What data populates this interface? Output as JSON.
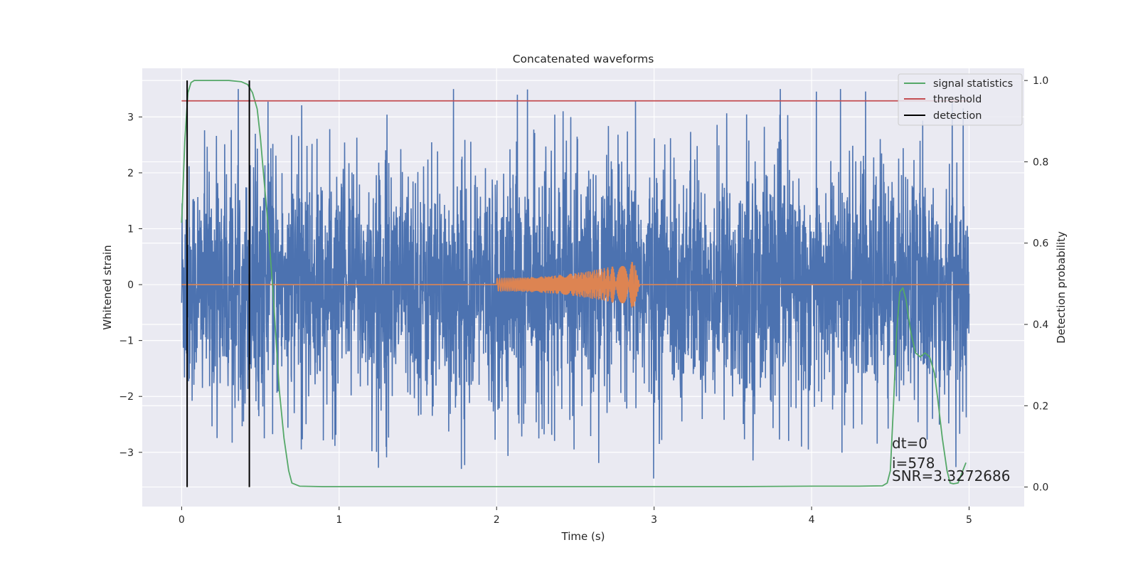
{
  "chart_data": {
    "type": "line",
    "title": "Concatenated waveforms",
    "xlabel": "Time (s)",
    "ylabel": "Whitened strain",
    "ylabel_right": "Detection probability",
    "xlim": [
      -0.25,
      5.35
    ],
    "ylim": [
      -3.97,
      3.87
    ],
    "ylim_right": [
      -0.048,
      1.03
    ],
    "grid": true,
    "legend_position": "top-right",
    "x_ticks": [
      {
        "value": 0,
        "label": "0"
      },
      {
        "value": 1,
        "label": "1"
      },
      {
        "value": 2,
        "label": "2"
      },
      {
        "value": 3,
        "label": "3"
      },
      {
        "value": 4,
        "label": "4"
      },
      {
        "value": 5,
        "label": "5"
      }
    ],
    "y_ticks": [
      {
        "value": -3,
        "label": "−3"
      },
      {
        "value": -2,
        "label": "−2"
      },
      {
        "value": -1,
        "label": "−1"
      },
      {
        "value": 0,
        "label": "0"
      },
      {
        "value": 1,
        "label": "1"
      },
      {
        "value": 2,
        "label": "2"
      },
      {
        "value": 3,
        "label": "3"
      }
    ],
    "y_ticks_right": [
      {
        "value": 0.0,
        "label": "0.0"
      },
      {
        "value": 0.2,
        "label": "0.2"
      },
      {
        "value": 0.4,
        "label": "0.4"
      },
      {
        "value": 0.6,
        "label": "0.6"
      },
      {
        "value": 0.8,
        "label": "0.8"
      },
      {
        "value": 1.0,
        "label": "1.0"
      }
    ],
    "noise_series": {
      "color": "#4c72b0",
      "x_range": [
        0,
        5
      ],
      "typical_amplitude": 1.1,
      "peak_min": -3.6,
      "peak_max": 3.5
    },
    "template_series": {
      "color": "#dd8452",
      "x_range": [
        0,
        5
      ],
      "chirp_start": 2.0,
      "chirp_end": 2.87,
      "start_amplitude": 0.12,
      "peak_amplitude": 0.42
    },
    "series": [
      {
        "name": "signal statistics",
        "color": "#55a868",
        "axis": "right",
        "x": [
          0.0,
          0.02,
          0.04,
          0.06,
          0.08,
          0.12,
          0.2,
          0.3,
          0.38,
          0.42,
          0.45,
          0.48,
          0.5,
          0.52,
          0.55,
          0.58,
          0.6,
          0.62,
          0.65,
          0.68,
          0.7,
          0.75,
          0.9,
          1.5,
          2.5,
          3.5,
          4.0,
          4.3,
          4.45,
          4.48,
          4.5,
          4.52,
          4.54,
          4.56,
          4.58,
          4.6,
          4.63,
          4.66,
          4.69,
          4.72,
          4.75,
          4.78,
          4.8,
          4.83,
          4.86,
          4.88,
          4.9,
          4.93,
          4.96,
          4.98
        ],
        "values": [
          0.65,
          0.85,
          0.97,
          0.995,
          1.0,
          1.0,
          1.0,
          1.0,
          0.997,
          0.99,
          0.97,
          0.93,
          0.86,
          0.77,
          0.64,
          0.48,
          0.36,
          0.24,
          0.12,
          0.04,
          0.01,
          0.002,
          0.001,
          0.001,
          0.001,
          0.001,
          0.002,
          0.002,
          0.003,
          0.01,
          0.04,
          0.2,
          0.38,
          0.48,
          0.49,
          0.46,
          0.38,
          0.33,
          0.32,
          0.33,
          0.32,
          0.28,
          0.22,
          0.12,
          0.04,
          0.01,
          0.008,
          0.01,
          0.04,
          0.06
        ]
      },
      {
        "name": "threshold",
        "color": "#c44e52",
        "axis": "right",
        "x": [
          0,
          5
        ],
        "values": [
          0.95,
          0.95
        ]
      },
      {
        "name": "detection",
        "color": "#000000",
        "axis": "right",
        "x": [
          0.035,
          0.43
        ],
        "values": [
          [
            0,
            1
          ],
          [
            0,
            1
          ]
        ]
      }
    ],
    "annotations": [
      "dt=0",
      "i=578",
      "SNR=3.3272686"
    ]
  }
}
